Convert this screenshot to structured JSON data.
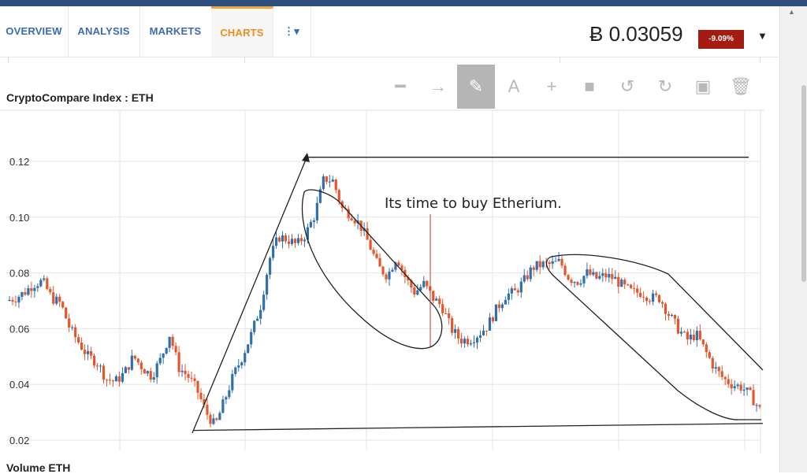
{
  "nav": {
    "tabs": [
      {
        "label": "OVERVIEW",
        "active": false
      },
      {
        "label": "ANALYSIS",
        "active": false
      },
      {
        "label": "MARKETS",
        "active": false
      },
      {
        "label": "CHARTS",
        "active": true
      }
    ],
    "more_icon": "more-dropdown-icon",
    "price": "Ƀ 0.03059",
    "change_badge": "-9.09%",
    "change_color": "#a41b12",
    "accent_color": "#f08c1c"
  },
  "toolbar": {
    "tools": [
      {
        "icon": "line-icon",
        "glyph": "━",
        "active": false
      },
      {
        "icon": "ray-icon",
        "glyph": "→",
        "active": false
      },
      {
        "icon": "pencil-icon",
        "glyph": "✎",
        "active": true
      },
      {
        "icon": "text-icon",
        "glyph": "A",
        "active": false
      },
      {
        "icon": "crosshair-icon",
        "glyph": "+",
        "active": false
      },
      {
        "icon": "rectangle-icon",
        "glyph": "■",
        "active": false
      },
      {
        "icon": "undo-icon",
        "glyph": "↺",
        "active": false
      },
      {
        "icon": "redo-icon",
        "glyph": "↻",
        "active": false
      },
      {
        "icon": "save-icon",
        "glyph": "▣",
        "active": false
      },
      {
        "icon": "trash-icon",
        "glyph": "🗑",
        "active": false
      }
    ]
  },
  "chart_title": "CryptoCompare Index : ETH",
  "volume_label": "Volume ETH",
  "chart_data": {
    "type": "candlestick",
    "title": "CryptoCompare Index : ETH",
    "ylim": [
      0.02,
      0.125
    ],
    "yticks": [
      0.12,
      0.1,
      0.08,
      0.06,
      0.04,
      0.02
    ],
    "ytick_labels": [
      "0.12",
      "0.10",
      "0.08",
      "0.06",
      "0.04",
      "0.02"
    ],
    "grid": true,
    "up_color": "#2f6fb0",
    "down_color": "#e4572e",
    "price_path": [
      0.07,
      0.071,
      0.073,
      0.076,
      0.077,
      0.071,
      0.069,
      0.06,
      0.055,
      0.05,
      0.048,
      0.042,
      0.041,
      0.044,
      0.05,
      0.046,
      0.043,
      0.049,
      0.058,
      0.046,
      0.043,
      0.038,
      0.03,
      0.025,
      0.034,
      0.043,
      0.05,
      0.058,
      0.068,
      0.085,
      0.093,
      0.092,
      0.09,
      0.094,
      0.101,
      0.114,
      0.113,
      0.103,
      0.101,
      0.097,
      0.09,
      0.082,
      0.079,
      0.086,
      0.078,
      0.073,
      0.076,
      0.071,
      0.068,
      0.06,
      0.056,
      0.056,
      0.058,
      0.061,
      0.067,
      0.072,
      0.073,
      0.077,
      0.082,
      0.083,
      0.083,
      0.084,
      0.078,
      0.077,
      0.08,
      0.078,
      0.079,
      0.078,
      0.075,
      0.073,
      0.073,
      0.071,
      0.071,
      0.065,
      0.06,
      0.056,
      0.058,
      0.052,
      0.046,
      0.042,
      0.04,
      0.039,
      0.036,
      0.031
    ],
    "annotations": {
      "note": "Its time to buy Etherium.",
      "resistance_line": 0.1215,
      "support_line_start": 0.0235,
      "support_line_end": 0.026
    }
  }
}
